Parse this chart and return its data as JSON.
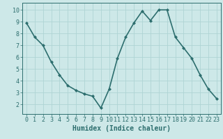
{
  "x": [
    0,
    1,
    2,
    3,
    4,
    5,
    6,
    7,
    8,
    9,
    10,
    11,
    12,
    13,
    14,
    15,
    16,
    17,
    18,
    19,
    20,
    21,
    22,
    23
  ],
  "y": [
    8.9,
    7.7,
    7.0,
    5.6,
    4.5,
    3.6,
    3.2,
    2.9,
    2.7,
    1.7,
    3.3,
    5.9,
    7.7,
    8.9,
    9.9,
    9.1,
    10.0,
    10.0,
    7.7,
    6.8,
    5.9,
    4.5,
    3.3,
    2.5
  ],
  "line_color": "#2d6e6e",
  "marker": "D",
  "marker_size": 2.0,
  "bg_color": "#cde8e8",
  "grid_color": "#afd4d4",
  "xlabel": "Humidex (Indice chaleur)",
  "xlim": [
    -0.5,
    23.5
  ],
  "ylim": [
    1.2,
    10.6
  ],
  "yticks": [
    2,
    3,
    4,
    5,
    6,
    7,
    8,
    9,
    10
  ],
  "xticks": [
    0,
    1,
    2,
    3,
    4,
    5,
    6,
    7,
    8,
    9,
    10,
    11,
    12,
    13,
    14,
    15,
    16,
    17,
    18,
    19,
    20,
    21,
    22,
    23
  ],
  "tick_color": "#2d6e6e",
  "label_color": "#2d6e6e",
  "spine_color": "#2d6e6e",
  "font_size": 6,
  "xlabel_fontsize": 7,
  "line_width": 1.2
}
